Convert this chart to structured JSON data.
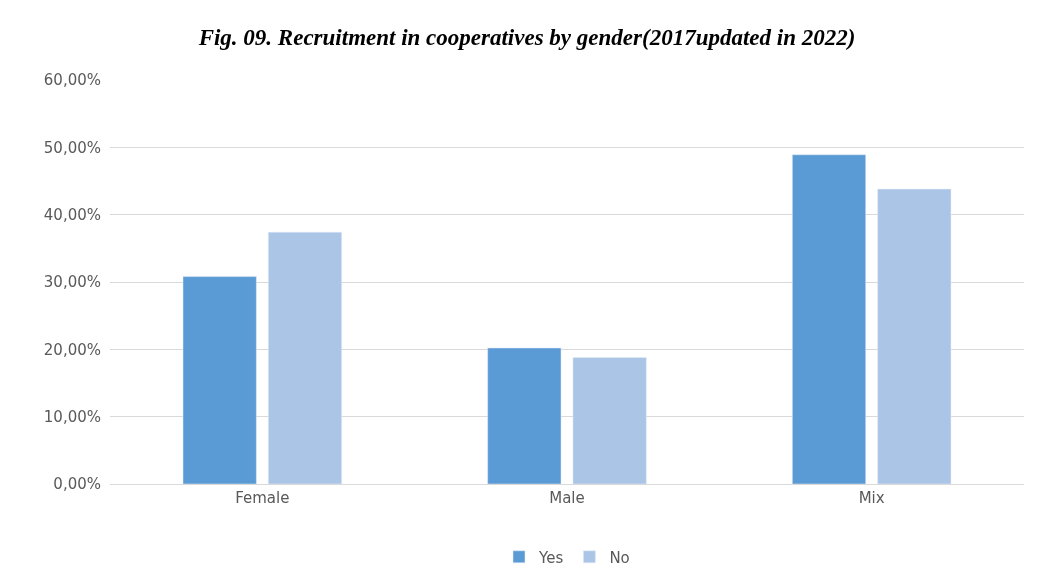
{
  "chart_data": {
    "type": "bar",
    "title": "Fig. 09. Recruitment in cooperatives by gender(2017updated in 2022)",
    "categories": [
      "Female",
      "Male",
      "Mix"
    ],
    "series": [
      {
        "name": "Yes",
        "color": "#5b9bd5",
        "values": [
          30.8,
          20.2,
          48.9
        ]
      },
      {
        "name": "No",
        "color": "#abc5e7",
        "values": [
          37.4,
          18.8,
          43.8
        ]
      }
    ],
    "ylim": [
      0,
      60
    ],
    "yticks": [
      {
        "value": 0,
        "label": "0,00%"
      },
      {
        "value": 10,
        "label": "10,00%"
      },
      {
        "value": 20,
        "label": "20,00%"
      },
      {
        "value": 30,
        "label": "30,00%"
      },
      {
        "value": 40,
        "label": "40,00%"
      },
      {
        "value": 50,
        "label": "50,00%"
      },
      {
        "value": 60,
        "label": "60,00%"
      }
    ],
    "grid": "y",
    "legend": "bottom"
  }
}
